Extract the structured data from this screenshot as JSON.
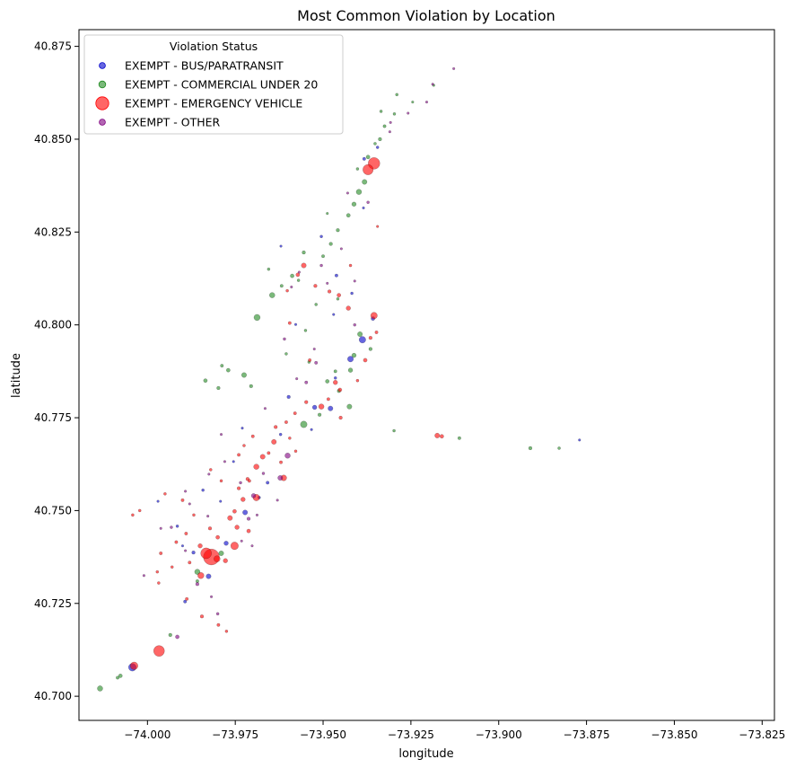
{
  "chart_data": {
    "type": "scatter",
    "title": "Most Common Violation by Location",
    "xlabel": "longitude",
    "ylabel": "latitude",
    "xlim": [
      -74.0195,
      -73.8215
    ],
    "ylim": [
      40.6935,
      40.8795
    ],
    "xticks": [
      -74.0,
      -73.975,
      -73.95,
      -73.925,
      -73.9,
      -73.875,
      -73.85,
      -73.825
    ],
    "xtick_labels": [
      "−74.000",
      "−73.975",
      "−73.950",
      "−73.925",
      "−73.900",
      "−73.875",
      "−73.850",
      "−73.825"
    ],
    "yticks": [
      40.7,
      40.725,
      40.75,
      40.775,
      40.8,
      40.825,
      40.85,
      40.875
    ],
    "ytick_labels": [
      "40.700",
      "40.725",
      "40.750",
      "40.775",
      "40.800",
      "40.825",
      "40.850",
      "40.875"
    ],
    "grid": false,
    "legend": {
      "title": "Violation Status",
      "placement": "top-left"
    },
    "series": [
      {
        "name": "EXEMPT - BUS/PARATRANSIT",
        "color": "#0000cc",
        "points": [
          [
            -74.0043,
            40.7078,
            60
          ],
          [
            -73.9826,
            40.7323,
            25
          ],
          [
            -73.9776,
            40.7412,
            20
          ],
          [
            -73.9722,
            40.7495,
            25
          ],
          [
            -73.9524,
            40.7778,
            20
          ],
          [
            -73.9479,
            40.7775,
            25
          ],
          [
            -73.9422,
            40.7908,
            35
          ],
          [
            -73.9388,
            40.796,
            45
          ],
          [
            -73.9358,
            40.8017,
            15
          ],
          [
            -73.9462,
            40.8133,
            10
          ],
          [
            -73.9383,
            40.8447,
            10
          ],
          [
            -73.9598,
            40.7806,
            12
          ],
          [
            -73.9658,
            40.7575,
            10
          ],
          [
            -73.9682,
            40.7535,
            8
          ],
          [
            -73.9869,
            40.7387,
            12
          ],
          [
            -73.9915,
            40.7458,
            8
          ],
          [
            -73.9842,
            40.7555,
            8
          ],
          [
            -73.9893,
            40.7255,
            10
          ],
          [
            -73.9621,
            40.7705,
            8
          ],
          [
            -73.9465,
            40.7857,
            8
          ],
          [
            -73.9418,
            40.8085,
            8
          ],
          [
            -73.9505,
            40.8238,
            8
          ],
          [
            -73.9345,
            40.8478,
            8
          ],
          [
            -73.9578,
            40.8001,
            6
          ],
          [
            -73.973,
            40.7722,
            6
          ],
          [
            -73.9755,
            40.7632,
            6
          ],
          [
            -73.997,
            40.7525,
            6
          ],
          [
            -73.99,
            40.7405,
            6
          ],
          [
            -73.877,
            40.769,
            6
          ],
          [
            -73.962,
            40.8212,
            6
          ],
          [
            -73.9385,
            40.8315,
            6
          ],
          [
            -73.947,
            40.8028,
            6
          ],
          [
            -73.9792,
            40.7525,
            6
          ],
          [
            -73.9533,
            40.7718,
            6
          ]
        ]
      },
      {
        "name": "EXEMPT - COMMERCIAL UNDER 20",
        "color": "#228b22",
        "points": [
          [
            -74.0135,
            40.7021,
            30
          ],
          [
            -74.0077,
            40.7055,
            15
          ],
          [
            -74.0085,
            40.705,
            10
          ],
          [
            -73.9858,
            40.7335,
            30
          ],
          [
            -73.979,
            40.7385,
            25
          ],
          [
            -73.9688,
            40.802,
            40
          ],
          [
            -73.9645,
            40.808,
            30
          ],
          [
            -73.9555,
            40.7732,
            45
          ],
          [
            -73.9425,
            40.778,
            25
          ],
          [
            -73.9395,
            40.7975,
            25
          ],
          [
            -73.9412,
            40.7918,
            20
          ],
          [
            -73.9398,
            40.8358,
            30
          ],
          [
            -73.9382,
            40.8385,
            25
          ],
          [
            -73.9412,
            40.8325,
            20
          ],
          [
            -73.9428,
            40.8295,
            15
          ],
          [
            -73.9458,
            40.8255,
            12
          ],
          [
            -73.9478,
            40.8218,
            12
          ],
          [
            -73.95,
            40.8185,
            10
          ],
          [
            -73.9372,
            40.8452,
            15
          ],
          [
            -73.9338,
            40.85,
            12
          ],
          [
            -73.9325,
            40.8535,
            10
          ],
          [
            -73.9297,
            40.8568,
            8
          ],
          [
            -73.9725,
            40.7865,
            25
          ],
          [
            -73.977,
            40.7878,
            15
          ],
          [
            -73.9788,
            40.789,
            10
          ],
          [
            -73.9835,
            40.785,
            15
          ],
          [
            -73.9798,
            40.783,
            12
          ],
          [
            -73.9705,
            40.7835,
            12
          ],
          [
            -73.9588,
            40.8132,
            15
          ],
          [
            -73.9555,
            40.8195,
            12
          ],
          [
            -73.9422,
            40.7878,
            20
          ],
          [
            -73.9365,
            40.7935,
            12
          ],
          [
            -73.951,
            40.7758,
            12
          ],
          [
            -73.9488,
            40.7848,
            15
          ],
          [
            -73.9455,
            40.7822,
            12
          ],
          [
            -73.9298,
            40.7715,
            8
          ],
          [
            -73.9112,
            40.7695,
            10
          ],
          [
            -73.891,
            40.7668,
            12
          ],
          [
            -73.8828,
            40.7668,
            8
          ],
          [
            -73.9605,
            40.7922,
            8
          ],
          [
            -73.955,
            40.7985,
            8
          ],
          [
            -73.952,
            40.8055,
            8
          ],
          [
            -73.9335,
            40.8575,
            8
          ],
          [
            -73.929,
            40.862,
            8
          ],
          [
            -73.9618,
            40.8105,
            10
          ],
          [
            -73.9655,
            40.815,
            8
          ],
          [
            -73.9458,
            40.807,
            8
          ],
          [
            -73.9402,
            40.842,
            8
          ],
          [
            -73.9352,
            40.8488,
            8
          ],
          [
            -73.9245,
            40.86,
            6
          ],
          [
            -73.9185,
            40.8645,
            6
          ],
          [
            -73.9488,
            40.83,
            6
          ],
          [
            -73.9935,
            40.7165,
            12
          ],
          [
            -73.9858,
            40.731,
            10
          ],
          [
            -73.957,
            40.812,
            8
          ],
          [
            -73.954,
            40.79,
            8
          ],
          [
            -73.9465,
            40.7875,
            10
          ]
        ]
      },
      {
        "name": "EXEMPT - EMERGENCY VEHICLE",
        "color": "#ff0000",
        "points": [
          [
            -73.9818,
            40.7375,
            260
          ],
          [
            -73.9833,
            40.7385,
            120
          ],
          [
            -73.9967,
            40.7122,
            120
          ],
          [
            -73.9355,
            40.8435,
            140
          ],
          [
            -73.9372,
            40.8418,
            110
          ],
          [
            -74.0038,
            40.7082,
            60
          ],
          [
            -73.9752,
            40.7405,
            60
          ],
          [
            -73.9848,
            40.7325,
            40
          ],
          [
            -73.9802,
            40.737,
            40
          ],
          [
            -73.969,
            40.7535,
            45
          ],
          [
            -73.9612,
            40.7588,
            35
          ],
          [
            -73.969,
            40.7618,
            30
          ],
          [
            -73.9672,
            40.7645,
            25
          ],
          [
            -73.964,
            40.7685,
            25
          ],
          [
            -73.9505,
            40.778,
            30
          ],
          [
            -73.9355,
            40.8025,
            45
          ],
          [
            -73.9428,
            40.8045,
            20
          ],
          [
            -73.9455,
            40.808,
            15
          ],
          [
            -73.9482,
            40.809,
            12
          ],
          [
            -73.9522,
            40.8105,
            12
          ],
          [
            -73.9555,
            40.816,
            25
          ],
          [
            -73.9572,
            40.8135,
            15
          ],
          [
            -73.9465,
            40.7845,
            20
          ],
          [
            -73.9452,
            40.7825,
            15
          ],
          [
            -73.938,
            40.7905,
            15
          ],
          [
            -73.9365,
            40.7965,
            12
          ],
          [
            -73.9348,
            40.798,
            10
          ],
          [
            -73.9175,
            40.7702,
            25
          ],
          [
            -73.9162,
            40.77,
            15
          ],
          [
            -73.9765,
            40.748,
            25
          ],
          [
            -73.9745,
            40.7455,
            20
          ],
          [
            -73.9752,
            40.7498,
            15
          ],
          [
            -73.9712,
            40.7445,
            15
          ],
          [
            -73.98,
            40.7428,
            15
          ],
          [
            -73.9822,
            40.7452,
            12
          ],
          [
            -73.989,
            40.7438,
            10
          ],
          [
            -73.9918,
            40.7415,
            10
          ],
          [
            -73.9962,
            40.7385,
            10
          ],
          [
            -73.988,
            40.736,
            10
          ],
          [
            -73.993,
            40.7348,
            8
          ],
          [
            -73.9972,
            40.7335,
            8
          ],
          [
            -73.9845,
            40.7215,
            12
          ],
          [
            -73.9798,
            40.7192,
            10
          ],
          [
            -73.9775,
            40.7175,
            8
          ],
          [
            -73.9715,
            40.7585,
            12
          ],
          [
            -73.974,
            40.756,
            12
          ],
          [
            -73.9635,
            40.7725,
            12
          ],
          [
            -73.9605,
            40.7738,
            10
          ],
          [
            -73.958,
            40.7762,
            10
          ],
          [
            -73.9548,
            40.7792,
            12
          ],
          [
            -73.97,
            40.77,
            10
          ],
          [
            -73.9725,
            40.7675,
            8
          ],
          [
            -73.99,
            40.7528,
            10
          ],
          [
            -73.995,
            40.7545,
            8
          ],
          [
            -74.0022,
            40.75,
            8
          ],
          [
            -74.0042,
            40.7488,
            8
          ],
          [
            -73.9868,
            40.7488,
            8
          ],
          [
            -73.9778,
            40.7365,
            20
          ],
          [
            -73.9888,
            40.7262,
            10
          ],
          [
            -73.974,
            40.765,
            10
          ],
          [
            -73.962,
            40.763,
            10
          ],
          [
            -73.9655,
            40.7655,
            10
          ],
          [
            -73.9595,
            40.7695,
            8
          ],
          [
            -73.982,
            40.761,
            8
          ],
          [
            -73.979,
            40.758,
            8
          ],
          [
            -73.9538,
            40.7905,
            10
          ],
          [
            -73.9595,
            40.8005,
            10
          ],
          [
            -73.945,
            40.775,
            12
          ],
          [
            -73.9485,
            40.78,
            10
          ],
          [
            -73.9402,
            40.785,
            8
          ],
          [
            -73.9422,
            40.816,
            8
          ],
          [
            -73.9345,
            40.8265,
            6
          ],
          [
            -73.9602,
            40.8092,
            8
          ],
          [
            -73.9968,
            40.7305,
            8
          ],
          [
            -73.985,
            40.7405,
            20
          ],
          [
            -73.9728,
            40.753,
            20
          ],
          [
            -73.971,
            40.758,
            10
          ],
          [
            -73.9578,
            40.766,
            8
          ]
        ]
      },
      {
        "name": "EXEMPT - OTHER",
        "color": "#800080",
        "points": [
          [
            -73.9601,
            40.7648,
            30
          ],
          [
            -73.9622,
            40.7588,
            25
          ],
          [
            -73.9698,
            40.754,
            20
          ],
          [
            -73.9915,
            40.716,
            15
          ],
          [
            -73.9712,
            40.7478,
            12
          ],
          [
            -73.9858,
            40.7302,
            12
          ],
          [
            -73.9548,
            40.7845,
            10
          ],
          [
            -73.952,
            40.7898,
            10
          ],
          [
            -73.961,
            40.7962,
            8
          ],
          [
            -73.98,
            40.7222,
            8
          ],
          [
            -73.9735,
            40.7575,
            8
          ],
          [
            -73.9932,
            40.7455,
            8
          ],
          [
            -73.967,
            40.76,
            8
          ],
          [
            -73.9505,
            40.816,
            8
          ],
          [
            -73.9372,
            40.833,
            8
          ],
          [
            -73.9258,
            40.857,
            6
          ],
          [
            -73.941,
            40.8,
            8
          ],
          [
            -73.959,
            40.8102,
            6
          ],
          [
            -73.978,
            40.7632,
            6
          ],
          [
            -73.9825,
            40.7598,
            6
          ],
          [
            -74.001,
            40.7325,
            6
          ],
          [
            -73.9962,
            40.7452,
            6
          ],
          [
            -73.988,
            40.7518,
            6
          ],
          [
            -73.979,
            40.7705,
            6
          ],
          [
            -73.9665,
            40.7775,
            6
          ],
          [
            -73.9575,
            40.7855,
            6
          ],
          [
            -73.9525,
            40.7935,
            6
          ],
          [
            -73.9488,
            40.8112,
            6
          ],
          [
            -73.9448,
            40.8205,
            6
          ],
          [
            -73.943,
            40.8355,
            6
          ],
          [
            -73.931,
            40.852,
            6
          ],
          [
            -73.9205,
            40.86,
            6
          ],
          [
            -73.9128,
            40.869,
            6
          ],
          [
            -73.9188,
            40.8648,
            6
          ],
          [
            -73.9828,
            40.7485,
            6
          ],
          [
            -73.9892,
            40.7392,
            6
          ],
          [
            -73.9732,
            40.7418,
            6
          ],
          [
            -73.9702,
            40.7405,
            6
          ],
          [
            -73.9818,
            40.7268,
            6
          ],
          [
            -73.9688,
            40.7488,
            6
          ],
          [
            -73.963,
            40.7528,
            6
          ],
          [
            -73.9892,
            40.7552,
            6
          ],
          [
            -73.9568,
            40.8142,
            6
          ],
          [
            -73.941,
            40.8118,
            6
          ],
          [
            -73.9308,
            40.8545,
            6
          ]
        ]
      }
    ]
  }
}
